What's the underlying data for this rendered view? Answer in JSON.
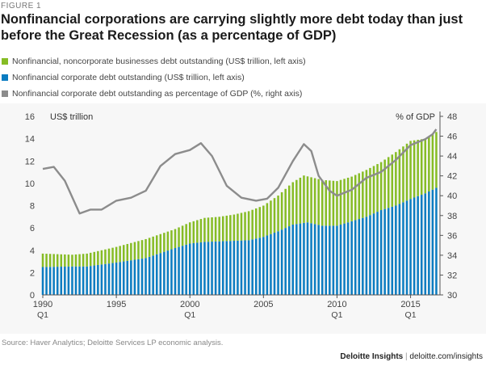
{
  "figure_label": "FIGURE 1",
  "title": "Nonfinancial corporations are carrying slightly more debt today than just before the Great Recession (as a percentage of GDP)",
  "source": "Source: Haver Analytics; Deloitte Services LP economic analysis.",
  "footer": {
    "brand": "Deloitte Insights",
    "separator": "|",
    "url": "deloitte.com/insights"
  },
  "colors": {
    "noncorporate": "#86bc25",
    "corporate": "#0a7cc1",
    "pct_gdp": "#8c8c8c"
  },
  "chart_data": {
    "type": "bar",
    "legend": [
      {
        "key": "noncorporate",
        "label": "Nonfinancial, noncorporate businesses debt outstanding (US$ trillion, left axis)"
      },
      {
        "key": "corporate",
        "label": "Nonfinancial corporate debt outstanding (US$ trillion, left axis)"
      },
      {
        "key": "pct_gdp",
        "label": "Nonfinancial corporate debt outstanding as percentage of GDP (%, right axis)"
      }
    ],
    "ylabel_left": "US$ trillion",
    "ylabel_right": "% of GDP",
    "ylim_left": [
      0,
      16
    ],
    "ylim_right": [
      30,
      48
    ],
    "yticks_left": [
      0,
      2,
      4,
      6,
      8,
      10,
      12,
      14,
      16
    ],
    "yticks_right": [
      30,
      32,
      34,
      36,
      38,
      40,
      42,
      44,
      46,
      48
    ],
    "xlim": [
      1990,
      2017
    ],
    "xticks": [
      {
        "year": 1990,
        "label": "1990",
        "sub": "Q1"
      },
      {
        "year": 1995,
        "label": "1995",
        "sub": ""
      },
      {
        "year": 2000,
        "label": "2000",
        "sub": "Q1"
      },
      {
        "year": 2005,
        "label": "2005",
        "sub": ""
      },
      {
        "year": 2010,
        "label": "2010",
        "sub": "Q1"
      },
      {
        "year": 2015,
        "label": "2015",
        "sub": "Q1"
      }
    ],
    "grid": false,
    "series_keypoints": {
      "corporate": {
        "x": [
          1990,
          1992,
          1993,
          1995,
          1997,
          1999,
          2000,
          2001,
          2002,
          2003,
          2004,
          2005,
          2006,
          2007,
          2008,
          2009,
          2010,
          2011,
          2012,
          2013,
          2014,
          2015,
          2016,
          2016.75
        ],
        "y": [
          2.5,
          2.55,
          2.55,
          2.9,
          3.3,
          4.2,
          4.6,
          4.75,
          4.8,
          4.85,
          4.9,
          5.2,
          5.7,
          6.3,
          6.5,
          6.2,
          6.2,
          6.6,
          7.0,
          7.6,
          8.0,
          8.6,
          9.1,
          9.6
        ]
      },
      "total": {
        "x": [
          1990,
          1992,
          1993,
          1995,
          1997,
          1999,
          2000,
          2001,
          2002,
          2003,
          2004,
          2005,
          2006,
          2007,
          2007.75,
          2009,
          2010,
          2011,
          2012,
          2013,
          2014,
          2015,
          2016,
          2016.75
        ],
        "y": [
          3.7,
          3.6,
          3.7,
          4.3,
          5.0,
          5.9,
          6.5,
          6.9,
          7.0,
          7.2,
          7.5,
          8.0,
          8.9,
          10.1,
          10.7,
          10.3,
          10.2,
          10.6,
          11.2,
          11.9,
          12.8,
          13.8,
          14.0,
          14.6
        ]
      },
      "pct_gdp": {
        "x": [
          1990,
          1990.75,
          1991.5,
          1992.5,
          1993.25,
          1994,
          1995,
          1996,
          1997,
          1998,
          1999,
          2000,
          2000.75,
          2001.5,
          2002.5,
          2003.5,
          2004.5,
          2005.25,
          2006,
          2007,
          2007.75,
          2008.25,
          2008.75,
          2009.5,
          2010,
          2011,
          2012,
          2013,
          2014,
          2015,
          2015.5,
          2016,
          2016.5,
          2016.75
        ],
        "y": [
          42.7,
          42.9,
          41.5,
          38.2,
          38.6,
          38.6,
          39.5,
          39.8,
          40.5,
          43.0,
          44.2,
          44.6,
          45.3,
          44.0,
          41.0,
          39.8,
          39.5,
          39.7,
          40.8,
          43.5,
          45.2,
          44.5,
          42.0,
          40.5,
          40.0,
          40.6,
          41.8,
          42.4,
          43.6,
          45.1,
          45.4,
          45.7,
          46.2,
          46.7
        ]
      }
    }
  }
}
